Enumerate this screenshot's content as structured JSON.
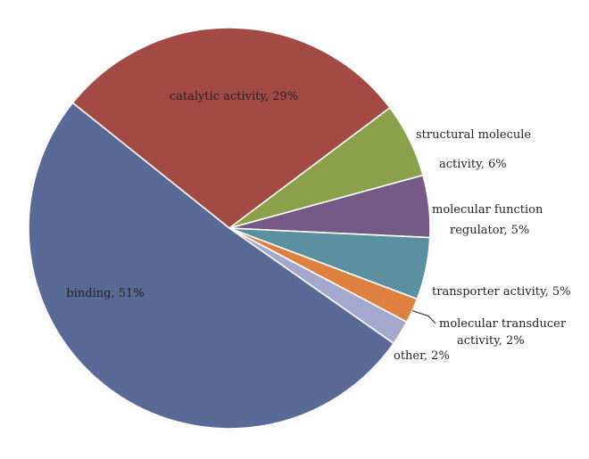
{
  "chart_data": {
    "type": "pie",
    "title": "",
    "legend": "none",
    "slices": [
      {
        "label": "catalytic activity",
        "value": 29,
        "display": "catalytic activity, 29%",
        "color": "#A44A45"
      },
      {
        "label": "structural molecule activity",
        "value": 6,
        "display_lines": [
          "structural molecule",
          "activity, 6%"
        ],
        "color": "#8AA04A"
      },
      {
        "label": "molecular function regulator",
        "value": 5,
        "display_lines": [
          "molecular function",
          "regulator, 5%"
        ],
        "color": "#765A86"
      },
      {
        "label": "transporter activity",
        "value": 5,
        "display": "transporter activity, 5%",
        "color": "#5B90A0"
      },
      {
        "label": "molecular transducer activity",
        "value": 2,
        "display_lines": [
          "molecular transducer",
          "activity, 2%"
        ],
        "color": "#DD8040"
      },
      {
        "label": "other",
        "value": 2,
        "display": "other, 2%",
        "color": "#A3A8CC"
      },
      {
        "label": "binding",
        "value": 51,
        "display": "binding, 51%",
        "color": "#5A6A97"
      }
    ]
  }
}
